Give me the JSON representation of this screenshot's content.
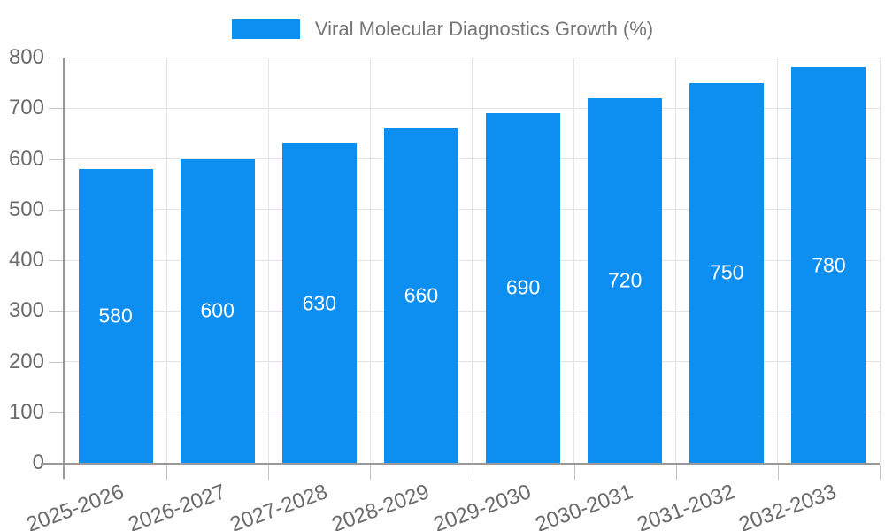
{
  "legend": {
    "label": "Viral Molecular Diagnostics Growth (%)"
  },
  "chart_data": {
    "type": "bar",
    "title": "Viral Molecular Diagnostics Growth (%)",
    "categories": [
      "2025-2026",
      "2026-2027",
      "2027-2028",
      "2028-2029",
      "2029-2030",
      "2030-2031",
      "2031-2032",
      "2032-2033"
    ],
    "values": [
      580,
      600,
      630,
      660,
      690,
      720,
      750,
      780
    ],
    "xlabel": "",
    "ylabel": "",
    "ylim": [
      0,
      800
    ],
    "ytick_step": 100,
    "yticks": [
      0,
      100,
      200,
      300,
      400,
      500,
      600,
      700,
      800
    ],
    "grid": true,
    "legend_position": "top-center",
    "x_label_rotation_deg": -20,
    "value_label_position": "inside-center",
    "colors": {
      "bar": "#0d8ff2",
      "value_label": "#ffffff",
      "axis_line": "#999999",
      "gridline": "#e4e4e4",
      "tick": "#c4c4c4",
      "tick_label": "#6b6b6b",
      "legend_text": "#757575",
      "background": "#ffffff"
    }
  }
}
